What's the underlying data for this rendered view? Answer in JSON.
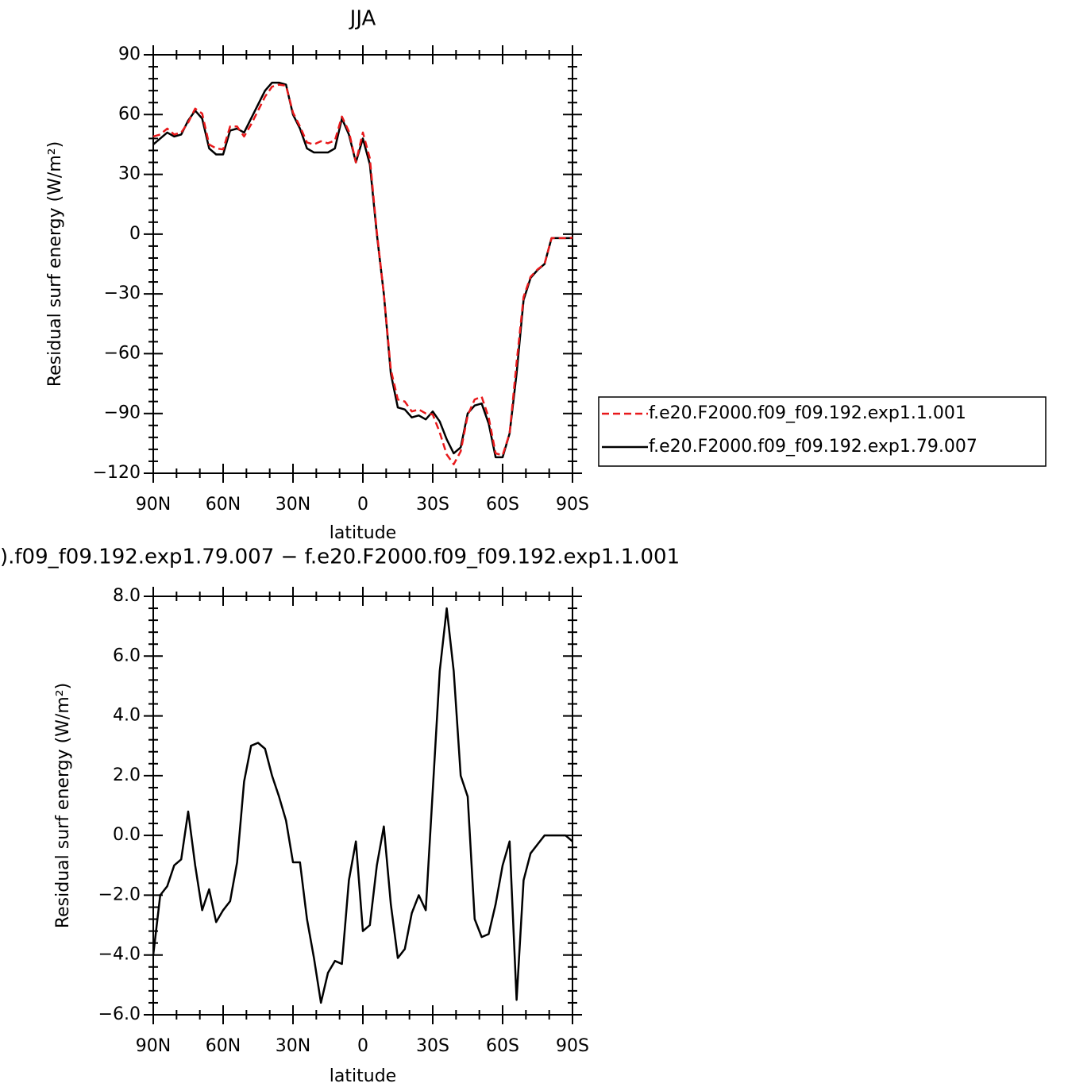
{
  "chart_data": [
    {
      "type": "line",
      "title": "JJA",
      "xlabel": "latitude",
      "ylabel": "Residual surf energy (W/m²)",
      "x": [
        90,
        87,
        84,
        81,
        78,
        75,
        72,
        69,
        66,
        63,
        60,
        57,
        54,
        51,
        48,
        45,
        42,
        39,
        36,
        33,
        30,
        27,
        24,
        21,
        18,
        15,
        12,
        9,
        6,
        3,
        0,
        -3,
        -6,
        -9,
        -12,
        -15,
        -18,
        -21,
        -24,
        -27,
        -30,
        -33,
        -36,
        -39,
        -42,
        -45,
        -48,
        -51,
        -54,
        -57,
        -60,
        -63,
        -66,
        -69,
        -72,
        -75,
        -78,
        -81,
        -84,
        -87,
        -90
      ],
      "xlim": [
        90,
        -90
      ],
      "xticks": [
        {
          "value": 90,
          "label": "90N"
        },
        {
          "value": 60,
          "label": "60N"
        },
        {
          "value": 30,
          "label": "30N"
        },
        0,
        {
          "value": -30,
          "label": "30S"
        },
        {
          "value": -60,
          "label": "60S"
        },
        {
          "value": -90,
          "label": "90S"
        }
      ],
      "ylim": [
        -120,
        90
      ],
      "yticks": [
        {
          "value": -120,
          "label": "−120"
        },
        {
          "value": -90,
          "label": "−90"
        },
        {
          "value": -60,
          "label": "−60"
        },
        {
          "value": -30,
          "label": "−30"
        },
        0,
        30,
        60,
        90
      ],
      "legend": "right",
      "series": [
        {
          "name": "f.e20.F2000.f09_f09.192.exp1.1.001",
          "color": "#e8191b",
          "style": "dashed",
          "values": [
            49,
            50,
            53,
            50,
            51,
            56,
            63,
            60.5,
            45,
            43,
            42.5,
            54,
            54,
            49,
            55,
            62,
            69,
            74,
            75,
            74.5,
            61,
            54,
            46,
            45,
            46.6,
            45.6,
            47,
            59,
            51.5,
            36,
            51,
            38,
            1,
            -30,
            -68,
            -83,
            -84,
            -89,
            -88,
            -90,
            -90.5,
            -99.5,
            -110.6,
            -115.5,
            -109,
            -91,
            -83,
            -81.6,
            -92,
            -110,
            -111,
            -100,
            -64.5,
            -31.5,
            -21.4,
            -17.7,
            -15,
            -2,
            -2,
            -2,
            -1.8
          ]
        },
        {
          "name": "f.e20.F2000.f09_f09.192.exp1.79.007",
          "color": "#000000",
          "style": "solid",
          "values": [
            45,
            48,
            51,
            49,
            50,
            57,
            62,
            58,
            43,
            40,
            40,
            52,
            53,
            51,
            58,
            65,
            72,
            76,
            76,
            75,
            60,
            53,
            43,
            41,
            41,
            41,
            43,
            58,
            50,
            36,
            48,
            35,
            0,
            -30,
            -70,
            -87,
            -88,
            -92,
            -91,
            -93,
            -89,
            -94,
            -103,
            -110,
            -107,
            -90,
            -86,
            -85,
            -95,
            -112,
            -112,
            -100,
            -70,
            -33,
            -22,
            -18,
            -15,
            -2,
            -2,
            -2,
            -2
          ]
        }
      ]
    },
    {
      "type": "line",
      "title": ").f09_f09.192.exp1.79.007 − f.e20.F2000.f09_f09.192.exp1.1.001",
      "xlabel": "latitude",
      "ylabel": "Residual surf energy (W/m²)",
      "x": [
        90,
        87,
        84,
        81,
        78,
        75,
        72,
        69,
        66,
        63,
        60,
        57,
        54,
        51,
        48,
        45,
        42,
        39,
        36,
        33,
        30,
        27,
        24,
        21,
        18,
        15,
        12,
        9,
        6,
        3,
        0,
        -3,
        -6,
        -9,
        -12,
        -15,
        -18,
        -21,
        -24,
        -27,
        -30,
        -33,
        -36,
        -39,
        -42,
        -45,
        -48,
        -51,
        -54,
        -57,
        -60,
        -63,
        -66,
        -69,
        -72,
        -75,
        -78,
        -81,
        -84,
        -87,
        -90
      ],
      "xlim": [
        90,
        -90
      ],
      "xticks": [
        {
          "value": 90,
          "label": "90N"
        },
        {
          "value": 60,
          "label": "60N"
        },
        {
          "value": 30,
          "label": "30N"
        },
        0,
        {
          "value": -30,
          "label": "30S"
        },
        {
          "value": -60,
          "label": "60S"
        },
        {
          "value": -90,
          "label": "90S"
        }
      ],
      "ylim": [
        -6,
        8
      ],
      "yticks": [
        {
          "value": -6,
          "label": "−6.0"
        },
        {
          "value": -4,
          "label": "−4.0"
        },
        {
          "value": -2,
          "label": "−2.0"
        },
        {
          "value": 0,
          "label": "0.0"
        },
        {
          "value": 2,
          "label": "2.0"
        },
        {
          "value": 4,
          "label": "4.0"
        },
        {
          "value": 6,
          "label": "6.0"
        },
        {
          "value": 8,
          "label": "8.0"
        }
      ],
      "series": [
        {
          "color": "#000000",
          "style": "solid",
          "values": [
            -4,
            -2,
            -1.7,
            -1,
            -0.8,
            0.8,
            -1,
            -2.5,
            -1.8,
            -2.9,
            -2.5,
            -2.2,
            -0.9,
            1.8,
            3,
            3.1,
            2.9,
            2,
            1.3,
            0.5,
            -0.9,
            -0.9,
            -2.8,
            -4.1,
            -5.6,
            -4.6,
            -4.2,
            -4.3,
            -1.5,
            -0.2,
            -3.2,
            -3,
            -1,
            0.3,
            -2.3,
            -4.1,
            -3.8,
            -2.6,
            -2,
            -2.5,
            1.5,
            5.5,
            7.6,
            5.5,
            2,
            1.3,
            -2.8,
            -3.4,
            -3.3,
            -2.3,
            -1,
            -0.2,
            -5.5,
            -1.5,
            -0.6,
            -0.3,
            0,
            0,
            0,
            0,
            -0.2
          ]
        }
      ]
    }
  ]
}
